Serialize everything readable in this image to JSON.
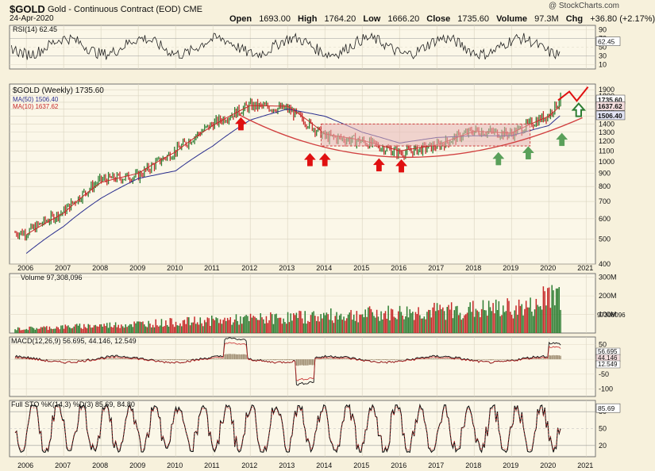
{
  "header": {
    "ticker": "$GOLD",
    "name": "Gold - Continuous Contract (EOD)",
    "exchange": "CME",
    "date": "24-Apr-2020",
    "open_label": "Open",
    "open": "1693.00",
    "high_label": "High",
    "high": "1764.20",
    "low_label": "Low",
    "low": "1666.20",
    "close_label": "Close",
    "close": "1735.60",
    "volume_label": "Volume",
    "volume": "97.3M",
    "chg_label": "Chg",
    "chg": "+36.80 (+2.17%)",
    "watermark": "@ StockCharts.com"
  },
  "colors": {
    "background": "#f7f1dc",
    "up": "#2e7d32",
    "down": "#c62828",
    "ma50": "#2b2f8f",
    "ma10": "#c62828",
    "arc": "#d14040",
    "box": "#e8b7b7",
    "green_arrow": "#5aa05a",
    "red_arrow": "#e01010"
  },
  "x_axis": {
    "years": [
      "2006",
      "2007",
      "2008",
      "2009",
      "2010",
      "2011",
      "2012",
      "2013",
      "2014",
      "2015",
      "2016",
      "2017",
      "2018",
      "2019",
      "2020",
      "2021"
    ]
  },
  "panels": {
    "rsi": {
      "label": "RSI(14) 62.45",
      "value": "62.45",
      "ticks": [
        "90",
        "70",
        "50",
        "30",
        "10"
      ]
    },
    "price": {
      "label": "$GOLD (Weekly) 1735.60",
      "ma50_label": "MA(50) 1506.40",
      "ma10_label": "MA(10) 1637.62",
      "ticks": [
        "1900",
        "1800",
        "1700",
        "1600",
        "1500",
        "1400",
        "1300",
        "1200",
        "1100",
        "1000",
        "900",
        "800",
        "700",
        "600",
        "500",
        "400"
      ],
      "last_price": "1735.60",
      "ma10_value": "1637.62",
      "ma50_value": "1506.40"
    },
    "volume": {
      "label": "Volume 97,308,096",
      "ticks": [
        "300M",
        "200M",
        "100M"
      ],
      "last": "97308096"
    },
    "macd": {
      "label": "MACD(12,26,9) 56.695, 44.146, 12.549",
      "ticks": [
        "50",
        "0",
        "-50",
        "-100"
      ],
      "values": [
        "56.695",
        "44.146",
        "12.549"
      ]
    },
    "sto": {
      "label": "Full STO %K(14,3) %D(3) 85.69, 84.80",
      "ticks": [
        "80",
        "50",
        "20"
      ],
      "k": "85.69",
      "d": "84.80"
    }
  },
  "chart_data": {
    "type": "line",
    "title": "Gold - Continuous Contract (EOD)",
    "x": [
      "2006",
      "2007",
      "2008",
      "2009",
      "2010",
      "2011",
      "2012",
      "2013",
      "2014",
      "2015",
      "2016",
      "2017",
      "2018",
      "2019",
      "2020",
      "2020.3"
    ],
    "series": [
      {
        "name": "$GOLD (Weekly)",
        "values": [
          530,
          640,
          850,
          880,
          1100,
          1400,
          1650,
          1600,
          1250,
          1200,
          1080,
          1150,
          1320,
          1280,
          1520,
          1735.6
        ]
      },
      {
        "name": "MA(50)",
        "values": [
          440,
          560,
          720,
          860,
          920,
          1150,
          1450,
          1600,
          1500,
          1300,
          1180,
          1240,
          1260,
          1260,
          1380,
          1506.4
        ]
      },
      {
        "name": "MA(10)",
        "values": [
          520,
          630,
          830,
          900,
          1090,
          1380,
          1650,
          1640,
          1280,
          1210,
          1100,
          1160,
          1310,
          1290,
          1500,
          1637.62
        ]
      }
    ],
    "ylim": [
      400,
      2000
    ],
    "log_scale": true,
    "grid": true,
    "annotations": {
      "red_arrows_years": [
        2011.75,
        2013.6,
        2014.0,
        2015.45,
        2016.05
      ],
      "green_arrows_years": [
        2018.65,
        2019.45,
        2020.35
      ],
      "outline_arrow_year": 2020.8,
      "box_range": [
        1150,
        1400
      ]
    }
  }
}
